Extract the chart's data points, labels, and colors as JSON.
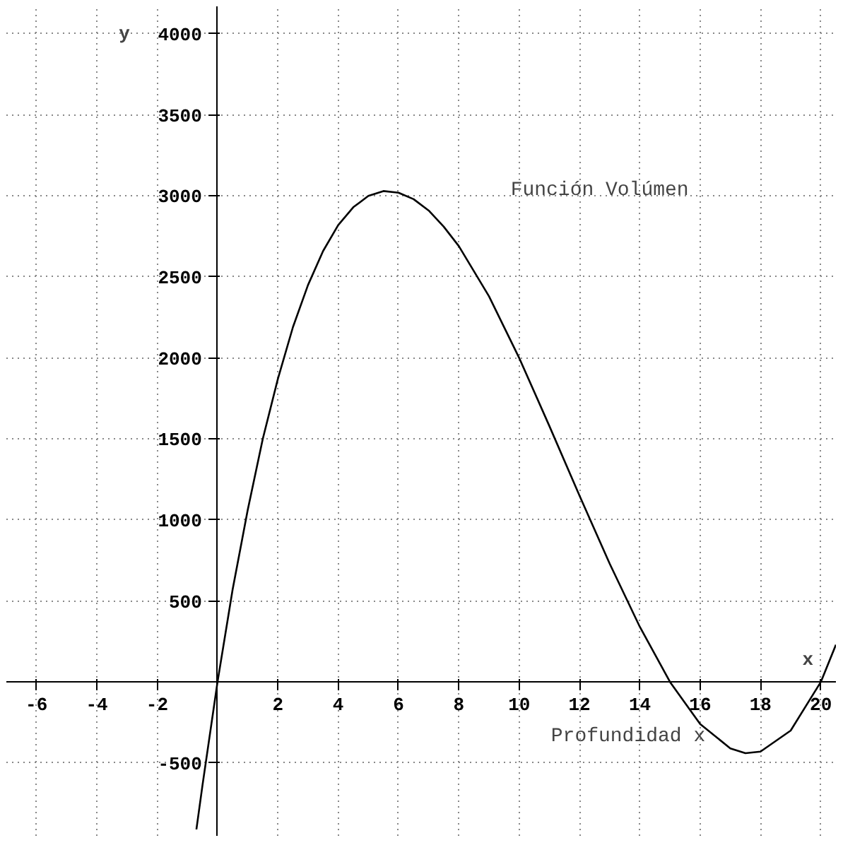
{
  "chart_data": {
    "type": "line",
    "xlabel": "x",
    "ylabel": "y",
    "annotations": [
      "Profundidad x"
    ],
    "x": [
      -0.7,
      -0.5,
      0,
      0.5,
      1,
      1.5,
      2,
      2.5,
      3,
      3.5,
      4,
      4.5,
      5,
      5.5,
      6,
      6.5,
      7,
      7.5,
      8,
      9,
      10,
      11,
      12,
      13,
      14,
      15,
      16,
      17,
      17.5,
      18,
      19,
      20,
      20.5
    ],
    "series": [
      {
        "name": "Función Volúmen",
        "color": "#000000",
        "values": [
          -910,
          -640,
          0,
          570,
          1060,
          1500,
          1870,
          2190,
          2450,
          2660,
          2820,
          2930,
          3000,
          3030,
          3020,
          2980,
          2910,
          2810,
          2690,
          2380,
          2000,
          1580,
          1150,
          730,
          340,
          0,
          -260,
          -410,
          -440,
          -430,
          -300,
          0,
          230
        ]
      }
    ],
    "xlim": [
      -7,
      20.5
    ],
    "ylim": [
      -950,
      4170
    ],
    "xticks": [
      -6,
      -4,
      -2,
      2,
      4,
      6,
      8,
      10,
      12,
      14,
      16,
      18,
      20
    ],
    "yticks": [
      -500,
      500,
      1000,
      1500,
      2000,
      2500,
      3000,
      3500,
      4000
    ],
    "grid": true,
    "line_style": "solid",
    "marker": "none"
  }
}
